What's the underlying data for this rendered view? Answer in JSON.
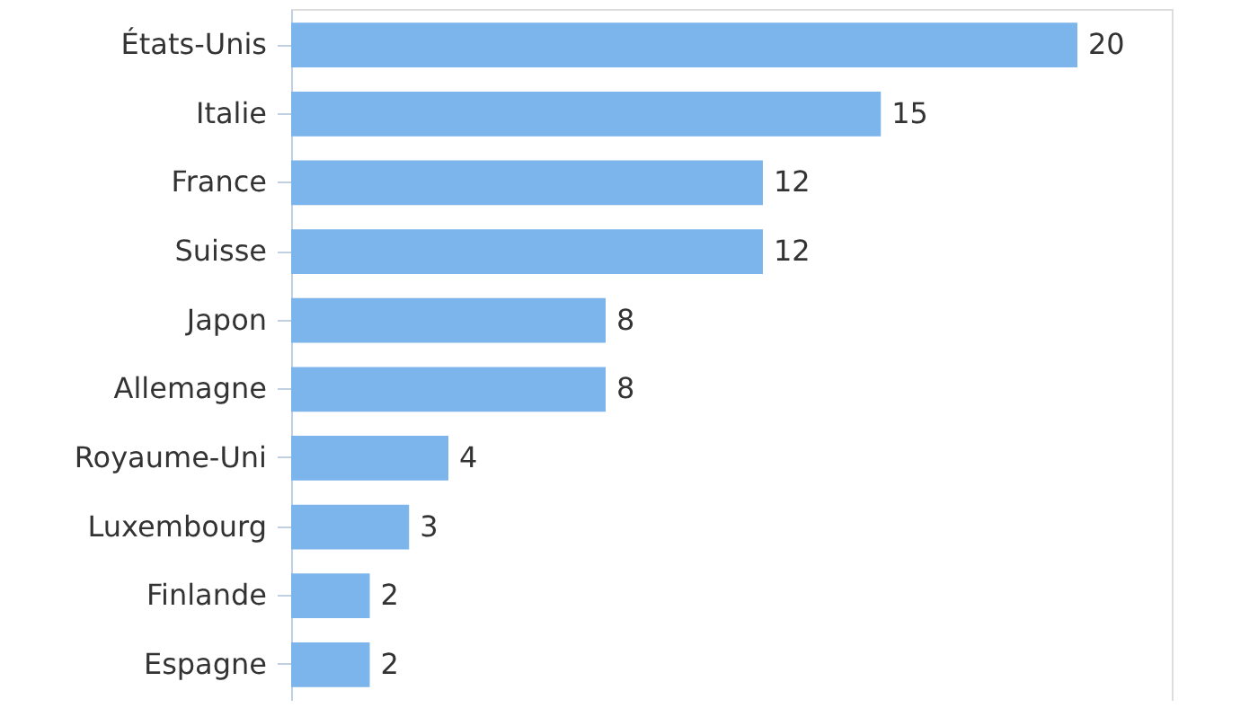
{
  "chart_data": {
    "type": "bar",
    "orientation": "horizontal",
    "categories": [
      "États-Unis",
      "Italie",
      "France",
      "Suisse",
      "Japon",
      "Allemagne",
      "Royaume-Uni",
      "Luxembourg",
      "Finlande",
      "Espagne"
    ],
    "values": [
      20,
      15,
      12,
      12,
      8,
      8,
      4,
      3,
      2,
      2
    ],
    "color": "#7cb5ec",
    "data_labels": true,
    "grid": false,
    "legend": false
  }
}
